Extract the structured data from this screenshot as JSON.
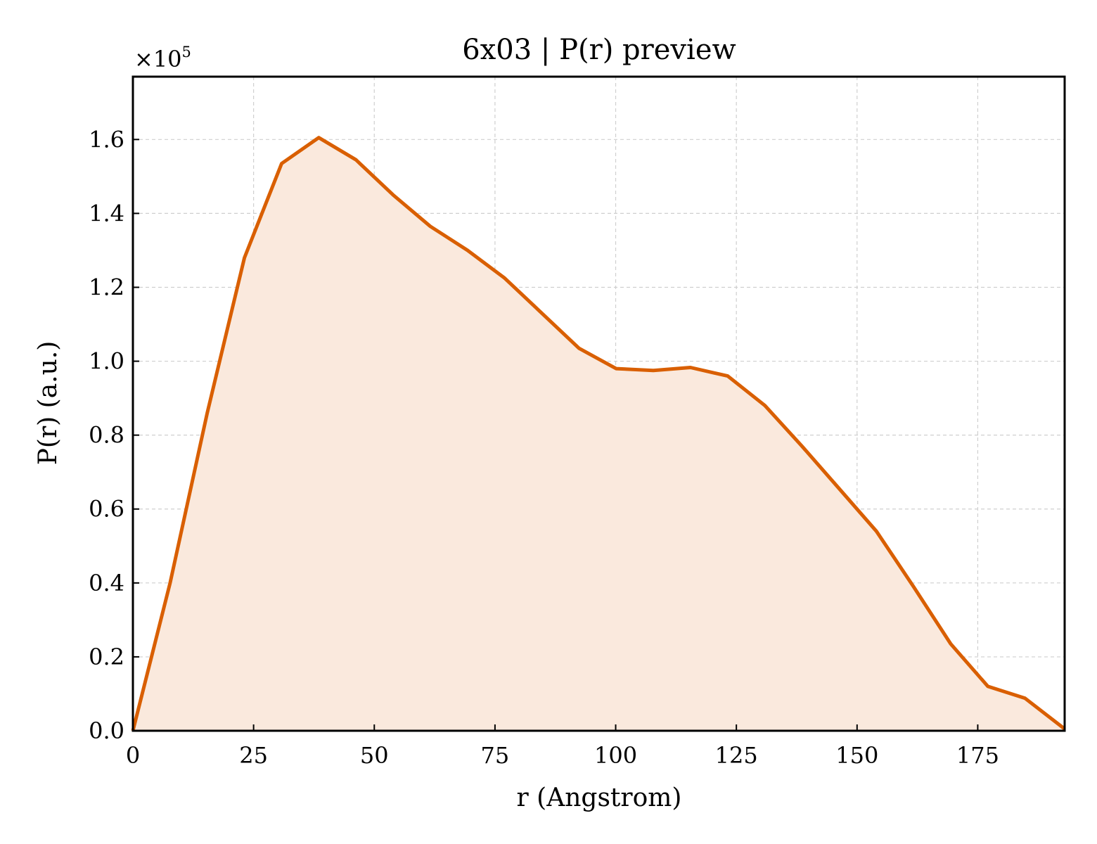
{
  "chart_data": {
    "type": "area",
    "title": "6x03 | P(r) preview",
    "xlabel": "r (Angstrom)",
    "ylabel": "P(r) (a.u.)",
    "y_multiplier": {
      "base": "×10",
      "exponent": "5"
    },
    "xlim": [
      0,
      193
    ],
    "ylim": [
      0,
      1.77
    ],
    "x_ticks": [
      0,
      25,
      50,
      75,
      100,
      125,
      150,
      175
    ],
    "x_tick_labels": [
      "0",
      "25",
      "50",
      "75",
      "100",
      "125",
      "150",
      "175"
    ],
    "y_ticks": [
      0,
      0.2,
      0.4,
      0.6,
      0.8,
      1.0,
      1.2,
      1.4,
      1.6
    ],
    "y_tick_labels": [
      "0.0",
      "0.2",
      "0.4",
      "0.6",
      "0.8",
      "1.0",
      "1.2",
      "1.4",
      "1.6"
    ],
    "grid": true,
    "ticks_direction": "in",
    "line_color": "#d95f02",
    "fill_color": "#fae9dd",
    "series": [
      {
        "x": [
          0,
          7.7,
          15.4,
          23.1,
          30.8,
          38.5,
          46.2,
          53.9,
          61.6,
          69.3,
          77.0,
          84.7,
          92.4,
          100.1,
          107.8,
          115.5,
          123.2,
          130.9,
          138.6,
          146.3,
          154.0,
          161.7,
          169.4,
          177.1,
          184.8,
          193.0
        ],
        "y": [
          0.0,
          0.4,
          0.86,
          1.28,
          1.535,
          1.605,
          1.545,
          1.45,
          1.365,
          1.3,
          1.225,
          1.13,
          1.035,
          0.98,
          0.975,
          0.983,
          0.96,
          0.88,
          0.77,
          0.655,
          0.54,
          0.39,
          0.235,
          0.12,
          0.088,
          0.005
        ]
      }
    ]
  }
}
